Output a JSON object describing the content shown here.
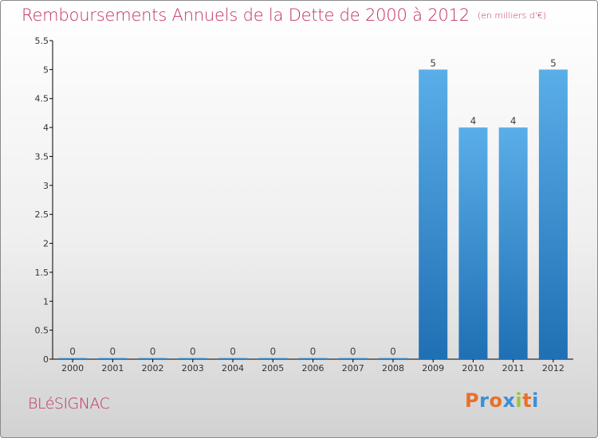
{
  "header": {
    "title": "Remboursements Annuels de la Dette de 2000 à 2012",
    "unit_note": "(en milliers d'€)"
  },
  "footer": {
    "town": "BLéSIGNAC",
    "brand": "Proxiti",
    "brand_letters": [
      {
        "ch": "P",
        "color": "#e8702a"
      },
      {
        "ch": "r",
        "color": "#3a8fd8"
      },
      {
        "ch": "o",
        "color": "#e8702a"
      },
      {
        "ch": "x",
        "color": "#3a8fd8"
      },
      {
        "ch": "i",
        "color": "#9bc53d"
      },
      {
        "ch": "t",
        "color": "#e8702a"
      },
      {
        "ch": "i",
        "color": "#3a8fd8"
      }
    ]
  },
  "colors": {
    "title": "#c0306a",
    "bar_top": "#5aaee8",
    "bar_bottom": "#1f6fb4",
    "axis": "#000000"
  },
  "chart_data": {
    "type": "bar",
    "categories": [
      "2000",
      "2001",
      "2002",
      "2003",
      "2004",
      "2005",
      "2006",
      "2007",
      "2008",
      "2009",
      "2010",
      "2011",
      "2012"
    ],
    "values": [
      0,
      0,
      0,
      0,
      0,
      0,
      0,
      0,
      0,
      5,
      4,
      4,
      5
    ],
    "data_labels": [
      "0",
      "0",
      "0",
      "0",
      "0",
      "0",
      "0",
      "0",
      "0",
      "5",
      "4",
      "4",
      "5"
    ],
    "yticks": [
      0,
      0.5,
      1,
      1.5,
      2,
      2.5,
      3,
      3.5,
      4,
      4.5,
      5,
      5.5
    ],
    "ytick_labels": [
      "0",
      "0.5",
      "1",
      "1.5",
      "2",
      "2.5",
      "3",
      "3.5",
      "4",
      "4.5",
      "5",
      "5.5"
    ],
    "ylim": [
      0,
      5.5
    ],
    "grid": false,
    "legend": "none"
  }
}
